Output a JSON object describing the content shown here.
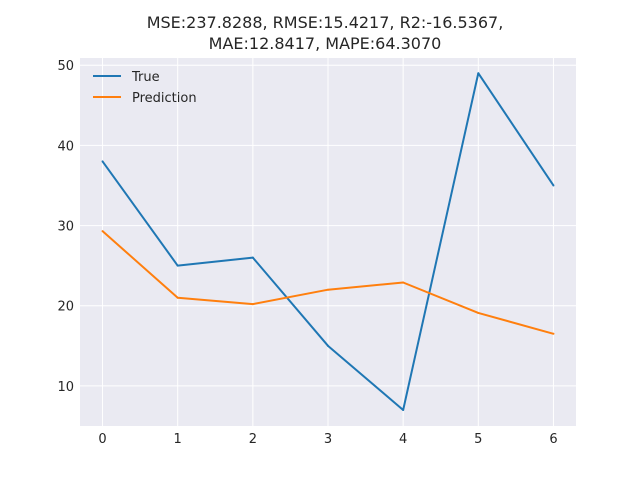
{
  "chart_data": {
    "type": "line",
    "title_lines": [
      "MSE:237.8288, RMSE:15.4217, R2:-16.5367,",
      "MAE:12.8417, MAPE:64.3070"
    ],
    "xlabel": "",
    "ylabel": "",
    "x": [
      0,
      1,
      2,
      3,
      4,
      5,
      6
    ],
    "x_ticks": [
      "0",
      "1",
      "2",
      "3",
      "4",
      "5",
      "6"
    ],
    "y_ticks": [
      "10",
      "20",
      "30",
      "40",
      "50"
    ],
    "xlim": [
      -0.3,
      6.3
    ],
    "ylim": [
      5,
      50.9
    ],
    "grid": true,
    "legend_position": "top-left",
    "series": [
      {
        "name": "True",
        "color": "#1f77b4",
        "values": [
          38,
          25,
          26,
          15,
          7,
          49,
          35
        ]
      },
      {
        "name": "Prediction",
        "color": "#ff7f0e",
        "values": [
          29.3,
          21.0,
          20.2,
          22.0,
          22.9,
          19.1,
          16.5
        ]
      }
    ]
  }
}
